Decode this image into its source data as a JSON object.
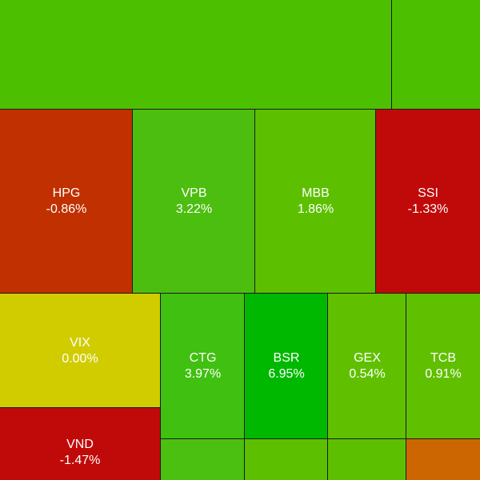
{
  "chart_data": {
    "type": "treemap",
    "tiles": [
      {
        "symbol": "",
        "change": "",
        "color": "#4cc000"
      },
      {
        "symbol": "",
        "change": "",
        "color": "#4cc000"
      },
      {
        "symbol": "HPG",
        "change": "-0.86%",
        "color": "#c03000"
      },
      {
        "symbol": "VPB",
        "change": "3.22%",
        "color": "#4cbe10"
      },
      {
        "symbol": "MBB",
        "change": "1.86%",
        "color": "#5cc000"
      },
      {
        "symbol": "SSI",
        "change": "-1.33%",
        "color": "#c00a0a"
      },
      {
        "symbol": "VIX",
        "change": "0.00%",
        "color": "#d0cc00"
      },
      {
        "symbol": "CTG",
        "change": "3.97%",
        "color": "#40c010"
      },
      {
        "symbol": "BSR",
        "change": "6.95%",
        "color": "#00b800"
      },
      {
        "symbol": "GEX",
        "change": "0.54%",
        "color": "#60c000"
      },
      {
        "symbol": "TCB",
        "change": "0.91%",
        "color": "#60c000"
      },
      {
        "symbol": "VND",
        "change": "-1.47%",
        "color": "#c00a0a"
      },
      {
        "symbol": "",
        "change": "",
        "color": "#4cc010"
      },
      {
        "symbol": "",
        "change": "",
        "color": "#5cc000"
      },
      {
        "symbol": "",
        "change": "",
        "color": "#5cc000"
      },
      {
        "symbol": "",
        "change": "",
        "color": "#cc6600"
      }
    ]
  }
}
